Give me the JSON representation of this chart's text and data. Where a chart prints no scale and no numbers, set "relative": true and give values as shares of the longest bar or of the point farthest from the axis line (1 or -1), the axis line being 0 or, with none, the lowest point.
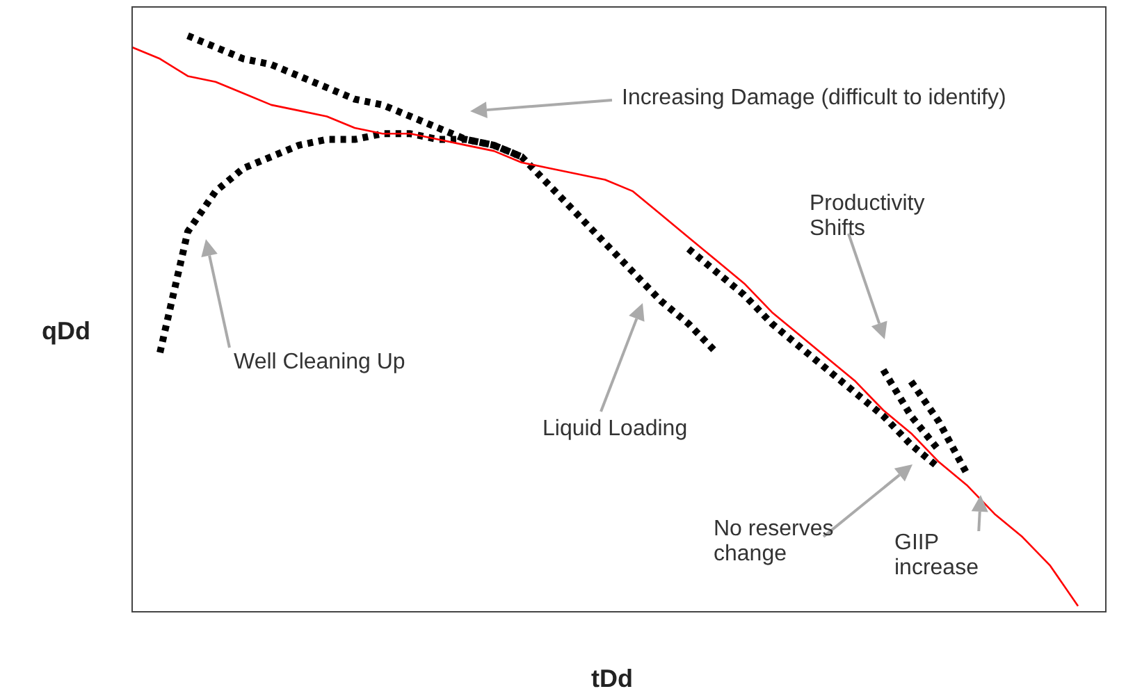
{
  "chart_data": {
    "type": "line",
    "relative": true,
    "xlabel": "tDd",
    "ylabel": "qDd",
    "legend": false,
    "categories": [
      null,
      null,
      null,
      null,
      null,
      null,
      null,
      null,
      null,
      null,
      null,
      null,
      null,
      null,
      null,
      null,
      null,
      null,
      null,
      null,
      null,
      null,
      null,
      null,
      null,
      null,
      null,
      null,
      null,
      null,
      null,
      null,
      null,
      null,
      null,
      null
    ],
    "series": [
      {
        "color": "#ff0000",
        "line_style": "solid",
        "values": [
          0.98,
          0.96,
          0.93,
          0.92,
          0.9,
          0.88,
          0.87,
          0.86,
          0.84,
          0.83,
          0.83,
          0.82,
          0.81,
          0.8,
          0.78,
          0.77,
          0.76,
          0.75,
          0.73,
          0.69,
          0.65,
          0.61,
          0.57,
          0.52,
          0.48,
          0.44,
          0.4,
          0.35,
          0.31,
          0.26,
          0.22,
          0.17,
          0.13,
          0.08,
          0.01,
          null
        ]
      },
      {
        "color": "#000000",
        "line_style": "dotted",
        "values": [
          null,
          null,
          1.0,
          0.98,
          0.96,
          0.95,
          0.93,
          0.91,
          0.89,
          0.88,
          0.86,
          0.84,
          0.82,
          0.81,
          0.79,
          0.74,
          0.69,
          0.64,
          0.59,
          0.54,
          0.5,
          0.45,
          null,
          null,
          null,
          null,
          null,
          null,
          null,
          null,
          null,
          null,
          null,
          null,
          null,
          null
        ]
      },
      {
        "color": "#000000",
        "line_style": "dotted",
        "values": [
          null,
          0.45,
          0.66,
          0.73,
          0.77,
          0.79,
          0.81,
          0.82,
          0.82,
          0.83,
          0.83,
          0.82,
          0.82,
          0.81,
          0.79,
          null,
          null,
          null,
          null,
          null,
          null,
          null,
          null,
          null,
          null,
          null,
          null,
          null,
          null,
          null,
          null,
          null,
          null,
          null,
          null,
          null
        ]
      },
      {
        "color": "#000000",
        "line_style": "dotted",
        "values": [
          null,
          null,
          null,
          null,
          null,
          null,
          null,
          null,
          null,
          null,
          null,
          null,
          null,
          null,
          null,
          null,
          null,
          null,
          null,
          null,
          0.63,
          0.59,
          0.55,
          0.5,
          0.46,
          0.42,
          0.38,
          0.34,
          0.29,
          0.25,
          null,
          null,
          null,
          null,
          null,
          null
        ]
      },
      {
        "color": "#000000",
        "line_style": "dotted",
        "values": [
          null,
          null,
          null,
          null,
          null,
          null,
          null,
          null,
          null,
          null,
          null,
          null,
          null,
          null,
          null,
          null,
          null,
          null,
          null,
          null,
          null,
          null,
          null,
          null,
          null,
          null,
          null,
          0.42,
          0.34,
          0.28,
          null,
          null,
          null,
          null,
          null,
          null
        ]
      },
      {
        "color": "#000000",
        "line_style": "dotted",
        "values": [
          null,
          null,
          null,
          null,
          null,
          null,
          null,
          null,
          null,
          null,
          null,
          null,
          null,
          null,
          null,
          null,
          null,
          null,
          null,
          null,
          null,
          null,
          null,
          null,
          null,
          null,
          null,
          null,
          0.4,
          0.33,
          0.24,
          null,
          null,
          null,
          null,
          null
        ]
      }
    ],
    "annotations": [
      "Increasing Damage (difficult to identify)",
      "Productivity Shifts",
      "Well Cleaning Up",
      "Liquid Loading",
      "No reserves change",
      "GIIP increase"
    ]
  }
}
